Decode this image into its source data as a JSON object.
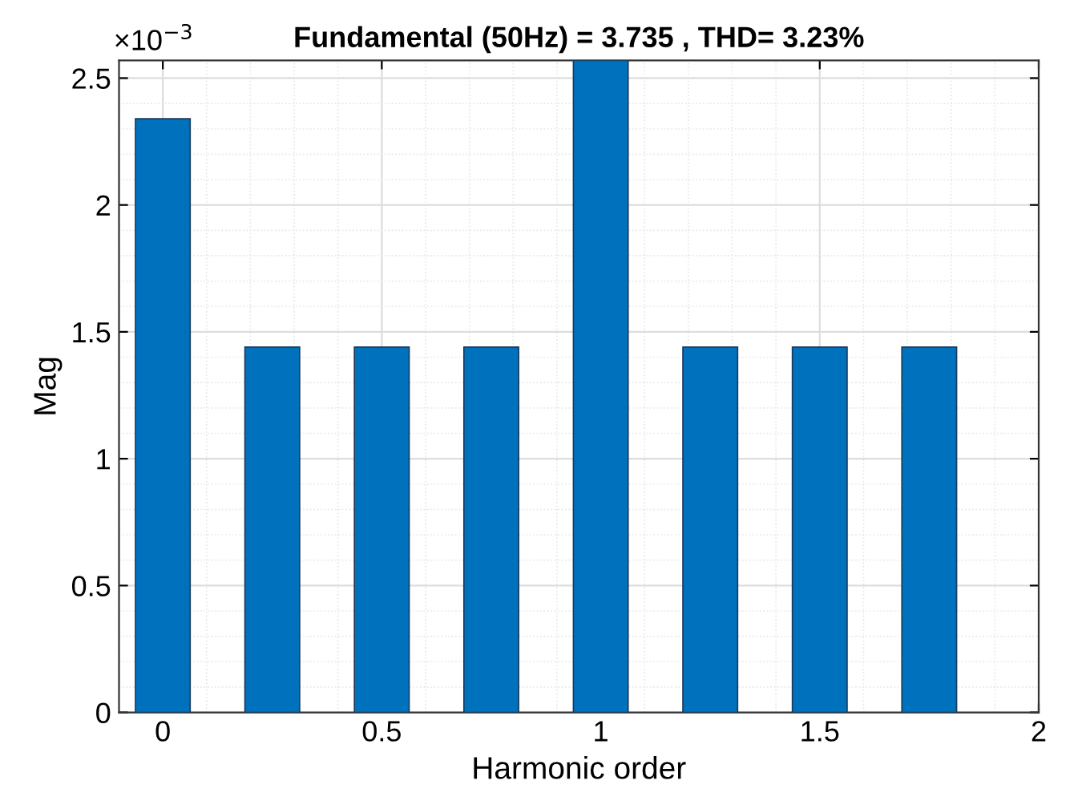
{
  "chart_data": {
    "type": "bar",
    "title": "Fundamental (50Hz) = 3.735 , THD= 3.23%",
    "xlabel": "Harmonic order",
    "ylabel": "Mag",
    "x": [
      0,
      0.25,
      0.5,
      0.75,
      1,
      1.25,
      1.5,
      1.75
    ],
    "values": [
      2.34,
      1.44,
      1.44,
      1.44,
      2.57,
      1.44,
      1.44,
      1.44
    ],
    "color": "#0072bd",
    "xlim": [
      -0.1,
      2
    ],
    "xticks": [
      0,
      0.5,
      1,
      1.5,
      2
    ],
    "ylim": [
      0,
      2.57
    ],
    "yticks": [
      0,
      0.5,
      1,
      1.5,
      2,
      2.5
    ],
    "grid": true,
    "annotations": [
      "×10$^{−3}$"
    ]
  }
}
